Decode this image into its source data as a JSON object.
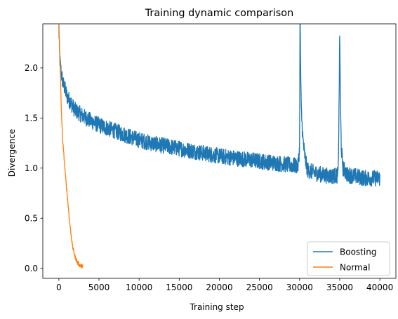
{
  "chart_data": {
    "type": "line",
    "title": "Training dynamic comparison",
    "xlabel": "Training step",
    "ylabel": "Divergence",
    "xlim": [
      -2000,
      42000
    ],
    "ylim": [
      -0.1,
      2.44
    ],
    "xticks": [
      0,
      5000,
      10000,
      15000,
      20000,
      25000,
      30000,
      35000,
      40000
    ],
    "xtick_labels": [
      "0",
      "5000",
      "10000",
      "15000",
      "20000",
      "25000",
      "30000",
      "35000",
      "40000"
    ],
    "yticks": [
      0.0,
      0.5,
      1.0,
      1.5,
      2.0
    ],
    "ytick_labels": [
      "0.0",
      "0.5",
      "1.0",
      "1.5",
      "2.0"
    ],
    "grid": false,
    "legend_position": "bottom-right",
    "series": [
      {
        "name": "Boosting",
        "color": "#1f77b4",
        "noise_band": 0.08,
        "x": [
          0,
          100,
          300,
          500,
          800,
          1000,
          1500,
          2000,
          3000,
          4000,
          5000,
          6000,
          7000,
          8000,
          9000,
          10000,
          12000,
          14000,
          16000,
          18000,
          20000,
          22000,
          24000,
          26000,
          28000,
          29800,
          30000,
          30050,
          30100,
          30200,
          30400,
          30600,
          30800,
          31000,
          32000,
          33000,
          34000,
          34800,
          34900,
          35000,
          35100,
          35200,
          35400,
          36000,
          37000,
          38000,
          39000,
          40000
        ],
        "y": [
          2.4,
          2.1,
          1.95,
          1.85,
          1.78,
          1.72,
          1.65,
          1.58,
          1.52,
          1.47,
          1.43,
          1.4,
          1.37,
          1.34,
          1.31,
          1.28,
          1.24,
          1.21,
          1.18,
          1.15,
          1.12,
          1.1,
          1.08,
          1.06,
          1.04,
          1.02,
          1.2,
          2.6,
          2.2,
          1.6,
          1.3,
          1.15,
          1.05,
          0.98,
          0.95,
          0.93,
          0.92,
          0.93,
          1.5,
          2.37,
          1.6,
          1.2,
          1.0,
          0.93,
          0.92,
          0.9,
          0.9,
          0.9
        ]
      },
      {
        "name": "Normal",
        "color": "#ff7f0e",
        "noise_band": 0.02,
        "x": [
          0,
          100,
          200,
          300,
          400,
          500,
          700,
          900,
          1100,
          1300,
          1500,
          1700,
          2000,
          2300,
          2600,
          3000
        ],
        "y": [
          2.45,
          2.2,
          1.9,
          1.6,
          1.4,
          1.25,
          1.05,
          0.85,
          0.68,
          0.5,
          0.35,
          0.22,
          0.12,
          0.06,
          0.03,
          0.02
        ]
      }
    ]
  }
}
